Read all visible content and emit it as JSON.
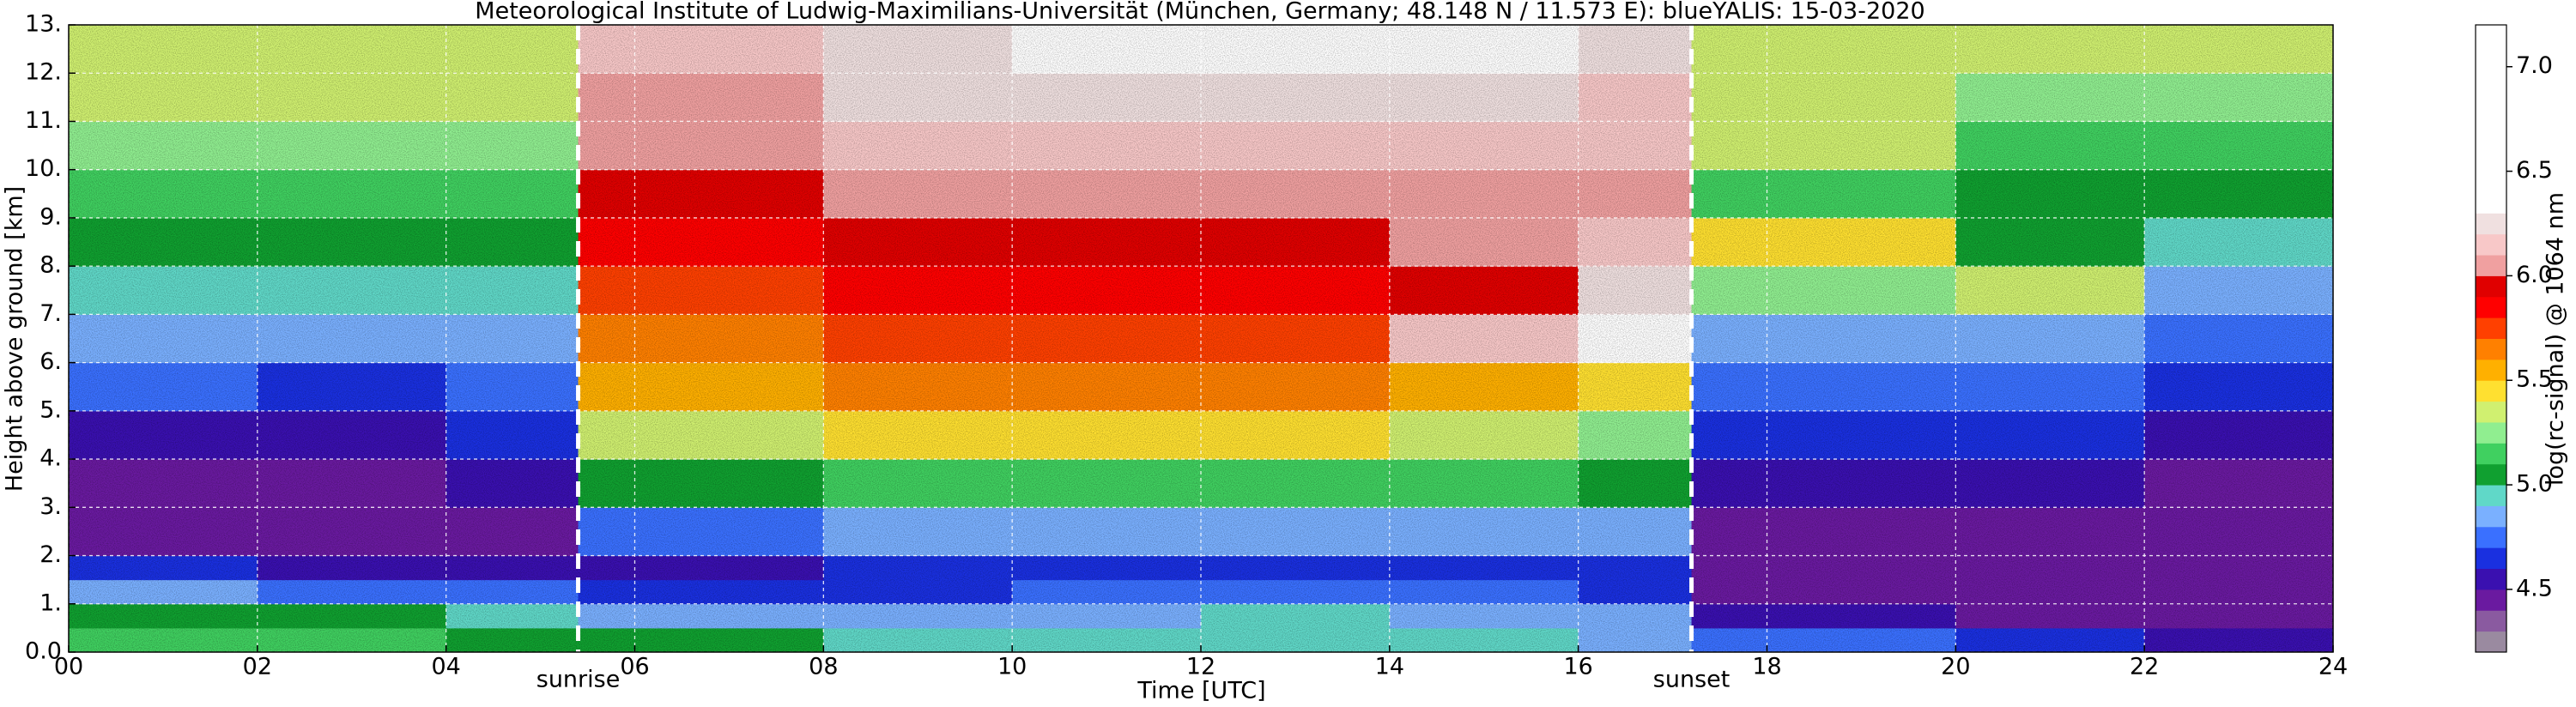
{
  "chart_data": {
    "type": "heatmap",
    "title": "Meteorological Institute of Ludwig-Maximilians-Universität (München, Germany; 48.148 N / 11.573 E):    blueYALIS: 15-03-2020",
    "x_label": "Time [UTC]",
    "y_label": "Height above ground [km]",
    "colorbar_label": "log(rc-signal) @ 1064 nm",
    "xlim": [
      0,
      24
    ],
    "ylim": [
      0,
      13
    ],
    "xticks": [
      {
        "value": 0,
        "label": "00"
      },
      {
        "value": 2,
        "label": "02"
      },
      {
        "value": 4,
        "label": "04"
      },
      {
        "value": 6,
        "label": "06"
      },
      {
        "value": 8,
        "label": "08"
      },
      10,
      12,
      14,
      16,
      18,
      20,
      22,
      24
    ],
    "yticks": [
      {
        "value": 0,
        "label": "0.0"
      },
      {
        "value": 1,
        "label": "1."
      },
      {
        "value": 2,
        "label": "2."
      },
      {
        "value": 3,
        "label": "3."
      },
      {
        "value": 4,
        "label": "4."
      },
      {
        "value": 5,
        "label": "5."
      },
      {
        "value": 6,
        "label": "6."
      },
      {
        "value": 7,
        "label": "7."
      },
      {
        "value": 8,
        "label": "8."
      },
      {
        "value": 9,
        "label": "9."
      },
      {
        "value": 10,
        "label": "10."
      },
      {
        "value": 11,
        "label": "11."
      },
      {
        "value": 12,
        "label": "12."
      },
      {
        "value": 13,
        "label": "13."
      }
    ],
    "grid": true,
    "x_edges": [
      0,
      2,
      4,
      5.4,
      8,
      10,
      12,
      14,
      16,
      17.2,
      20,
      22,
      24
    ],
    "y_edges": [
      0,
      0.5,
      1,
      1.5,
      2,
      3,
      4,
      5,
      6,
      7,
      8,
      9,
      10,
      11,
      12,
      13
    ],
    "z": [
      [
        5.1,
        5.1,
        5.0,
        5.0,
        4.95,
        4.9,
        4.95,
        4.9,
        4.85,
        4.7,
        4.6,
        4.5
      ],
      [
        5.0,
        5.0,
        4.9,
        4.85,
        4.8,
        4.85,
        4.9,
        4.85,
        4.8,
        4.5,
        4.45,
        4.4
      ],
      [
        4.8,
        4.75,
        4.7,
        4.6,
        4.65,
        4.7,
        4.7,
        4.7,
        4.65,
        4.45,
        4.45,
        4.4
      ],
      [
        4.6,
        4.55,
        4.5,
        4.55,
        4.6,
        4.65,
        4.65,
        4.65,
        4.6,
        4.4,
        4.4,
        4.4
      ],
      [
        4.45,
        4.45,
        4.45,
        4.7,
        4.8,
        4.85,
        4.85,
        4.85,
        4.8,
        4.45,
        4.45,
        4.4
      ],
      [
        4.45,
        4.45,
        4.5,
        5.0,
        5.1,
        5.15,
        5.15,
        5.1,
        5.0,
        4.5,
        4.5,
        4.45
      ],
      [
        4.55,
        4.55,
        4.6,
        5.3,
        5.4,
        5.4,
        5.4,
        5.35,
        5.25,
        4.6,
        4.6,
        4.55
      ],
      [
        4.7,
        4.65,
        4.7,
        5.5,
        5.6,
        5.6,
        5.6,
        5.55,
        5.45,
        4.7,
        4.7,
        4.65
      ],
      [
        4.8,
        4.8,
        4.85,
        5.65,
        5.75,
        5.75,
        5.75,
        6.1,
        6.3,
        4.8,
        4.8,
        4.75
      ],
      [
        4.9,
        4.9,
        4.95,
        5.75,
        5.85,
        5.85,
        5.85,
        5.9,
        6.2,
        5.2,
        5.3,
        4.85
      ],
      [
        5.0,
        5.0,
        5.0,
        5.85,
        5.95,
        5.95,
        5.95,
        6.0,
        6.1,
        5.4,
        5.0,
        4.95
      ],
      [
        5.1,
        5.1,
        5.1,
        5.9,
        6.0,
        6.05,
        6.05,
        6.05,
        6.05,
        5.1,
        5.05,
        5.05
      ],
      [
        5.2,
        5.2,
        5.2,
        6.0,
        6.1,
        6.1,
        6.1,
        6.1,
        6.1,
        5.3,
        5.15,
        5.15
      ],
      [
        5.3,
        5.3,
        5.3,
        6.05,
        6.2,
        6.2,
        6.2,
        6.2,
        6.15,
        5.3,
        5.25,
        5.2
      ],
      [
        5.35,
        5.35,
        5.35,
        6.1,
        6.25,
        6.3,
        6.3,
        6.3,
        6.2,
        5.35,
        5.3,
        5.3
      ]
    ],
    "clim": [
      4.2,
      7.2
    ],
    "cticks": [
      4.5,
      {
        "value": 5,
        "label": "5.0"
      },
      5.5,
      {
        "value": 6,
        "label": "6.0"
      },
      6.5,
      {
        "value": 7,
        "label": "7.0"
      }
    ],
    "colormap": [
      {
        "value": 4.2,
        "color": "#9a8aa0"
      },
      {
        "value": 4.3,
        "color": "#8a5aa0"
      },
      {
        "value": 4.4,
        "color": "#6a1aa0"
      },
      {
        "value": 4.5,
        "color": "#3a10b0"
      },
      {
        "value": 4.6,
        "color": "#1a30e0"
      },
      {
        "value": 4.7,
        "color": "#3a70ff"
      },
      {
        "value": 4.8,
        "color": "#7ab0ff"
      },
      {
        "value": 4.9,
        "color": "#60d8c8"
      },
      {
        "value": 5.0,
        "color": "#10a030"
      },
      {
        "value": 5.1,
        "color": "#40d060"
      },
      {
        "value": 5.2,
        "color": "#90ee90"
      },
      {
        "value": 5.3,
        "color": "#d0f070"
      },
      {
        "value": 5.4,
        "color": "#ffe030"
      },
      {
        "value": 5.5,
        "color": "#ffb000"
      },
      {
        "value": 5.6,
        "color": "#ff8000"
      },
      {
        "value": 5.7,
        "color": "#ff4000"
      },
      {
        "value": 5.8,
        "color": "#ff0000"
      },
      {
        "value": 5.9,
        "color": "#e00000"
      },
      {
        "value": 6.0,
        "color": "#f0a0a0"
      },
      {
        "value": 6.1,
        "color": "#f8c8c8"
      },
      {
        "value": 6.2,
        "color": "#f0e0e0"
      },
      {
        "value": 6.3,
        "color": "#ffffff"
      }
    ],
    "annotations": [
      {
        "x": 5.4,
        "label": "sunrise"
      },
      {
        "x": 17.2,
        "label": "sunset"
      }
    ]
  }
}
